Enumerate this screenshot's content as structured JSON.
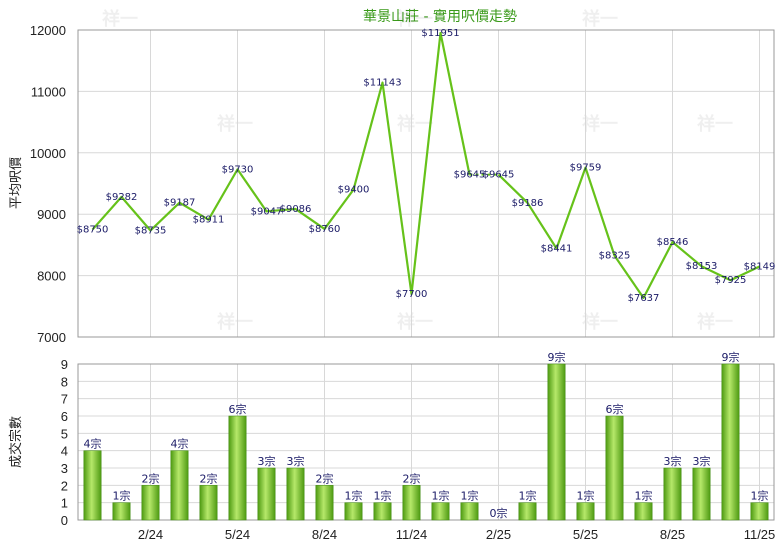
{
  "title": "華景山莊 - 實用呎價走勢",
  "watermark": "祥一",
  "colors": {
    "line": "#66c21a",
    "bar_light": "#b6e86a",
    "bar_dark": "#4e9a12",
    "grid": "#d8d8d8",
    "title": "#3a9a1a"
  },
  "chart_data": [
    {
      "type": "line",
      "ylabel": "平均呎價",
      "ylim": [
        7000,
        12000
      ],
      "yticks": [
        7000,
        8000,
        9000,
        10000,
        11000,
        12000
      ],
      "grid": true,
      "values": [
        8750,
        9282,
        8735,
        9187,
        8911,
        9730,
        9047,
        9086,
        8760,
        9400,
        11143,
        7700,
        11951,
        9645,
        9645,
        9186,
        8441,
        9759,
        8325,
        7637,
        8546,
        8153,
        7925,
        8149
      ],
      "labels": [
        "$8750",
        "$9282",
        "$8735",
        "$9187",
        "$8911",
        "$9730",
        "$9047",
        "$9086",
        "$8760",
        "$9400",
        "$11143",
        "$7700",
        "$11951",
        "$9645",
        "$9645",
        "$9186",
        "$8441",
        "$9759",
        "$8325",
        "$7637",
        "$8546",
        "$8153",
        "$7925",
        "$8149"
      ],
      "gap_after_index": 13
    },
    {
      "type": "bar",
      "ylabel": "成交宗數",
      "ylim": [
        0,
        9
      ],
      "yticks": [
        0,
        1,
        2,
        3,
        4,
        5,
        6,
        7,
        8,
        9
      ],
      "grid": true,
      "values": [
        4,
        1,
        2,
        4,
        2,
        6,
        3,
        3,
        2,
        1,
        1,
        2,
        1,
        1,
        0,
        1,
        9,
        1,
        6,
        1,
        3,
        3,
        9,
        1
      ],
      "labels": [
        "4宗",
        "1宗",
        "2宗",
        "4宗",
        "2宗",
        "6宗",
        "3宗",
        "3宗",
        "2宗",
        "1宗",
        "1宗",
        "2宗",
        "1宗",
        "1宗",
        "0宗",
        "1宗",
        "9宗",
        "1宗",
        "6宗",
        "1宗",
        "3宗",
        "3宗",
        "9宗",
        "1宗"
      ],
      "categories": [
        "",
        "",
        "2/24",
        "",
        "",
        "5/24",
        "",
        "",
        "8/24",
        "",
        "",
        "11/24",
        "",
        "",
        "2/25",
        "",
        "",
        "5/25",
        "",
        "",
        "8/25",
        "",
        "",
        "11/25"
      ]
    }
  ]
}
